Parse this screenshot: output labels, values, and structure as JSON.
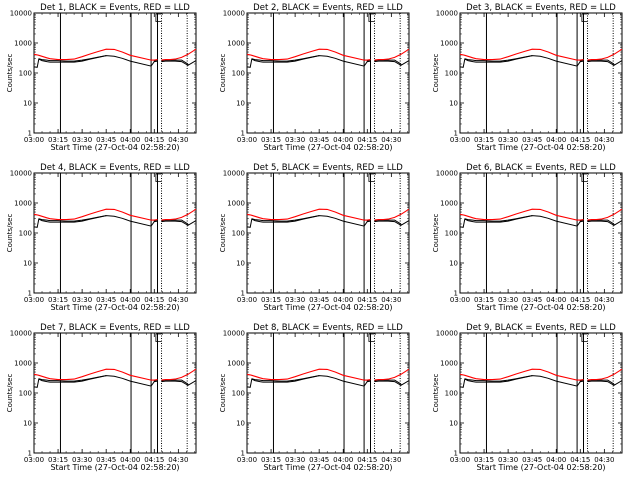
{
  "figure": {
    "background": "#ffffff",
    "axis_color": "#000000"
  },
  "chart_data": [
    {
      "type": "line",
      "title": "Det 1, BLACK = Events, RED = LLD"
    },
    {
      "type": "line",
      "title": "Det 2, BLACK = Events, RED = LLD"
    },
    {
      "type": "line",
      "title": "Det 3, BLACK = Events, RED = LLD"
    },
    {
      "type": "line",
      "title": "Det 4, BLACK = Events, RED = LLD"
    },
    {
      "type": "line",
      "title": "Det 5, BLACK = Events, RED = LLD"
    },
    {
      "type": "line",
      "title": "Det 6, BLACK = Events, RED = LLD"
    },
    {
      "type": "line",
      "title": "Det 7, BLACK = Events, RED = LLD"
    },
    {
      "type": "line",
      "title": "Det 8, BLACK = Events, RED = LLD"
    },
    {
      "type": "line",
      "title": "Det 9, BLACK = Events, RED = LLD"
    }
  ],
  "shared": {
    "xlabel": "Start Time (27-Oct-04 02:58:20)",
    "ylabel": "Counts/sec",
    "x_tick_labels": [
      "03:00",
      "03:15",
      "03:30",
      "03:45",
      "04:00",
      "04:15",
      "04:30"
    ],
    "x_tick_minutes": [
      0,
      15,
      30,
      45,
      60,
      75,
      90
    ],
    "xlim_minutes": [
      0,
      101
    ],
    "yscale": "log",
    "ylim": [
      1,
      10000
    ],
    "y_tick_labels": [
      "1",
      "10",
      "100",
      "1000",
      "10000"
    ],
    "y_tick_values": [
      1,
      10,
      100,
      1000,
      10000
    ],
    "series_colors": {
      "events": "#000000",
      "lld": "#ff0000"
    },
    "solid_markers_min": [
      16.5,
      60.5,
      73,
      77
    ],
    "dotted_markers_min": [
      79.5,
      95.5
    ],
    "gaps_min": [
      [
        60.5,
        73
      ],
      [
        77,
        79.5
      ]
    ],
    "x_minutes": [
      0,
      2,
      3,
      5,
      8,
      10,
      15,
      20,
      25,
      30,
      35,
      40,
      45,
      50,
      55,
      60,
      73,
      75,
      77,
      79.5,
      82,
      85,
      88,
      92,
      96,
      101
    ],
    "lld_values": [
      420,
      400,
      390,
      360,
      320,
      300,
      280,
      280,
      290,
      350,
      430,
      520,
      620,
      610,
      500,
      390,
      270,
      270,
      280,
      270,
      280,
      280,
      290,
      330,
      420,
      620
    ],
    "events_values": [
      160,
      155,
      290,
      260,
      240,
      230,
      230,
      230,
      230,
      250,
      290,
      330,
      380,
      360,
      310,
      250,
      170,
      240,
      250,
      240,
      250,
      250,
      250,
      240,
      180,
      260
    ],
    "events_top_values": [
      null,
      null,
      300,
      280,
      270,
      260,
      260,
      250,
      250,
      270,
      300,
      340,
      380,
      null,
      null,
      null,
      null,
      260,
      270,
      260,
      270,
      270,
      270,
      270,
      200,
      null
    ]
  }
}
